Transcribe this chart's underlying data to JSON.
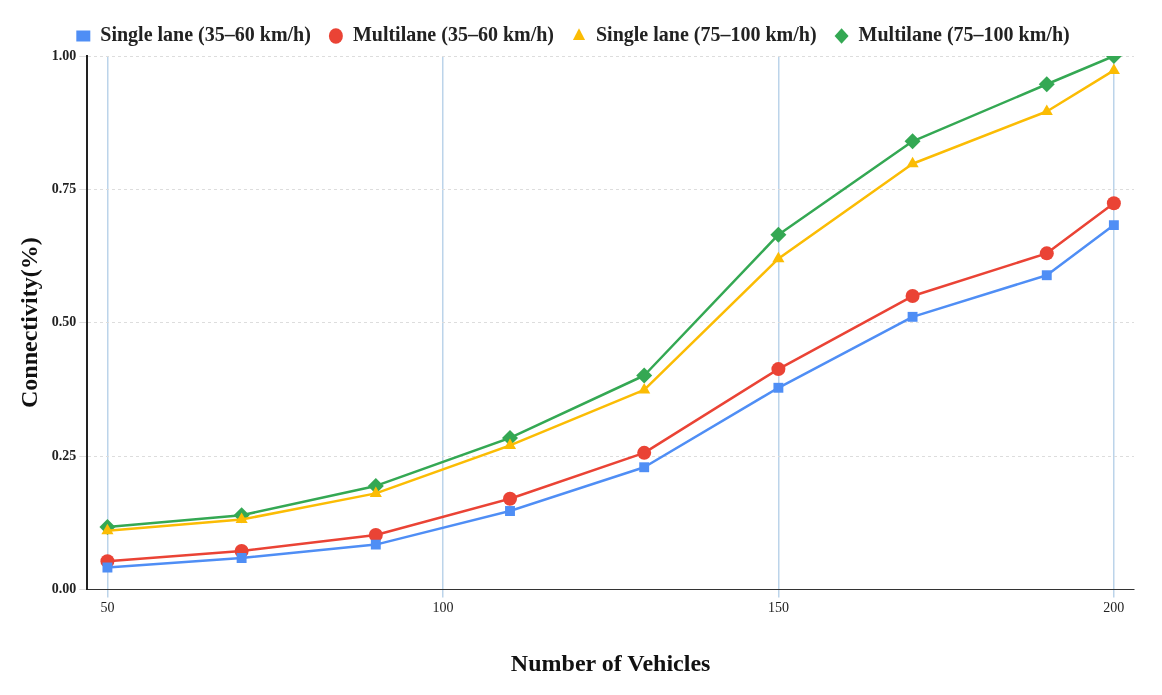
{
  "chart_data": {
    "type": "line",
    "xlabel": "Number of Vehicles",
    "ylabel": "Connectivity(%)",
    "x": [
      50,
      70,
      90,
      110,
      130,
      150,
      170,
      190,
      200
    ],
    "series": [
      {
        "name": "Single lane (35–60 km/h)",
        "color": "#4f8ef5",
        "marker": "square",
        "values": [
          0.041,
          0.059,
          0.084,
          0.147,
          0.229,
          0.378,
          0.511,
          0.589,
          0.683
        ]
      },
      {
        "name": "Multilane (35–60 km/h)",
        "color": "#ea4335",
        "marker": "circle",
        "values": [
          0.053,
          0.072,
          0.102,
          0.17,
          0.256,
          0.413,
          0.55,
          0.63,
          0.724
        ]
      },
      {
        "name": "Single lane (75–100 km/h)",
        "color": "#fbbc04",
        "marker": "triangle",
        "values": [
          0.11,
          0.131,
          0.18,
          0.27,
          0.374,
          0.62,
          0.798,
          0.896,
          0.973
        ]
      },
      {
        "name": "Multilane (75–100 km/h)",
        "color": "#34a853",
        "marker": "diamond",
        "values": [
          0.117,
          0.139,
          0.194,
          0.284,
          0.401,
          0.665,
          0.84,
          0.947,
          1.0
        ]
      }
    ],
    "xlim": [
      47,
      203
    ],
    "xticks": [
      50,
      100,
      150,
      200
    ],
    "ylim": [
      0,
      1
    ],
    "yticks": [
      {
        "value": 0,
        "label": "0.00"
      },
      {
        "value": 0.25,
        "label": "0.25"
      },
      {
        "value": 0.5,
        "label": "0.50"
      },
      {
        "value": 0.75,
        "label": "0.75"
      },
      {
        "value": 1,
        "label": "1.00"
      }
    ],
    "grid": true,
    "legend": "top",
    "line_style": "solid"
  }
}
